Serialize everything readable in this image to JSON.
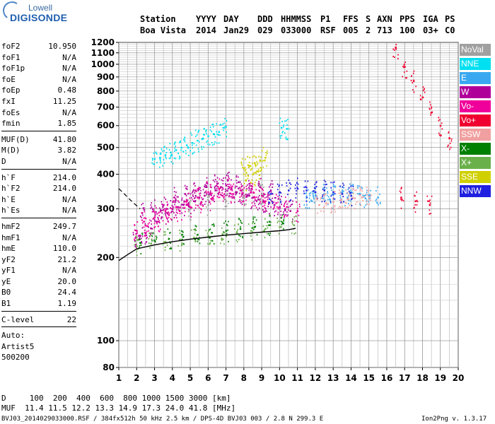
{
  "logo": {
    "top": "Lowell",
    "main": "DIGISONDE"
  },
  "header": {
    "labels": [
      "Station",
      "YYYY",
      "DAY",
      "DDD",
      "HHMMSS",
      "P1",
      "FFS",
      "S",
      "AXN",
      "PPS",
      "IGA",
      "PS"
    ],
    "values": [
      "Boa Vista",
      "2014",
      "Jan29",
      "029",
      "033000",
      "RSF",
      "005",
      "2",
      "713",
      "100",
      "03+",
      "C0"
    ]
  },
  "parameters": {
    "group1": [
      {
        "name": "foF2",
        "value": "10.950"
      },
      {
        "name": "foF1",
        "value": "N/A"
      },
      {
        "name": "foF1p",
        "value": "N/A"
      },
      {
        "name": "foE",
        "value": "N/A"
      },
      {
        "name": "foEp",
        "value": "0.48"
      },
      {
        "name": "fxI",
        "value": "11.25"
      },
      {
        "name": "foEs",
        "value": "N/A"
      },
      {
        "name": "fmin",
        "value": "1.85"
      }
    ],
    "group2": [
      {
        "name": "MUF(D)",
        "value": "41.80"
      },
      {
        "name": "M(D)",
        "value": "3.82"
      },
      {
        "name": "D",
        "value": "N/A"
      }
    ],
    "group3": [
      {
        "name": "h`F",
        "value": "214.0"
      },
      {
        "name": "h`F2",
        "value": "214.0"
      },
      {
        "name": "h`E",
        "value": "N/A"
      },
      {
        "name": "h`Es",
        "value": "N/A"
      }
    ],
    "group4": [
      {
        "name": "hmF2",
        "value": "249.7"
      },
      {
        "name": "hmF1",
        "value": "N/A"
      },
      {
        "name": "hmE",
        "value": "110.0"
      },
      {
        "name": "yF2",
        "value": "21.2"
      },
      {
        "name": "yF1",
        "value": "N/A"
      },
      {
        "name": "yE",
        "value": "20.0"
      },
      {
        "name": "B0",
        "value": "24.4"
      },
      {
        "name": "B1",
        "value": "1.19"
      }
    ],
    "group5": [
      {
        "name": "C-level",
        "value": "22"
      }
    ],
    "autoscale": [
      "Auto:",
      "Artist5",
      "500200"
    ]
  },
  "legend": [
    {
      "label": "NoVal",
      "color": "#a0a0a0"
    },
    {
      "label": "NNE",
      "color": "#00e0f0"
    },
    {
      "label": "E",
      "color": "#3aa8f0"
    },
    {
      "label": "W",
      "color": "#b0009a"
    },
    {
      "label": "Vo-",
      "color": "#f0009a"
    },
    {
      "label": "Vo+",
      "color": "#f00030"
    },
    {
      "label": "SSW",
      "color": "#f0a0a0"
    },
    {
      "label": "X-",
      "color": "#008000"
    },
    {
      "label": "X+",
      "color": "#6ab04a"
    },
    {
      "label": "SSE",
      "color": "#d0d000"
    },
    {
      "label": "NNW",
      "color": "#2020e0"
    }
  ],
  "footer": {
    "d_row": "D     100  200  400  600  800 1000 1500 3000 [km]",
    "muf_row": "MUF  11.4 11.5 12.2 13.3 14.9 17.3 24.0 41.8 [MHz]",
    "file_info": "BVJ03_2014029033000.RSF / 384fx512h 50 kHz 2.5 km / DPS-4D BVJ03 003 / 2.8 N 299.3 E",
    "version": "Ion2Png v. 1.3.17"
  },
  "chart_data": {
    "type": "scatter",
    "title": "",
    "xlabel": "",
    "ylabel": "",
    "xlim": [
      1,
      20
    ],
    "ylim": [
      80,
      1200
    ],
    "x_ticks": [
      1,
      2,
      3,
      4,
      5,
      6,
      7,
      8,
      9,
      10,
      11,
      12,
      13,
      14,
      15,
      16,
      17,
      18,
      19,
      20
    ],
    "y_ticks": [
      80,
      100,
      200,
      300,
      400,
      500,
      600,
      700,
      800,
      900,
      1000,
      1100,
      1200
    ],
    "y_scale": "log",
    "grid": true,
    "legend_position": "right",
    "series": [
      {
        "name": "W",
        "color": "#b0009a",
        "x": [
          1.9,
          2.2,
          2.5,
          2.8,
          3.1,
          3.4,
          3.7,
          4.0,
          4.3,
          4.6,
          4.9,
          5.2,
          5.5,
          5.8,
          6.1,
          6.4,
          6.7,
          7.0,
          7.3,
          7.6,
          7.9,
          8.2,
          8.5,
          8.8,
          9.1,
          9.4,
          9.7,
          10.0,
          10.3,
          10.6,
          2.3,
          2.9,
          3.5,
          4.1,
          4.7,
          5.3,
          5.9,
          6.5,
          7.1,
          7.7,
          8.3,
          8.9,
          9.5
        ],
        "y": [
          230,
          240,
          245,
          255,
          270,
          280,
          290,
          300,
          305,
          310,
          315,
          320,
          330,
          335,
          340,
          350,
          360,
          365,
          355,
          345,
          340,
          335,
          330,
          325,
          320,
          315,
          310,
          305,
          300,
          295,
          290,
          300,
          310,
          330,
          340,
          350,
          360,
          370,
          380,
          375,
          370,
          360,
          350
        ]
      },
      {
        "name": "Vo-",
        "color": "#f0009a",
        "x": [
          2.0,
          2.6,
          3.2,
          3.8,
          4.4,
          5.0,
          5.6,
          6.2,
          6.8,
          7.4,
          8.0,
          8.6,
          9.2,
          9.8,
          10.4,
          11.0,
          2.4,
          3.0,
          3.6,
          4.2,
          4.8,
          5.4,
          6.0,
          6.6,
          7.2,
          7.8,
          8.4,
          9.0
        ],
        "y": [
          250,
          260,
          270,
          285,
          295,
          305,
          315,
          325,
          335,
          340,
          335,
          330,
          320,
          315,
          305,
          295,
          270,
          280,
          295,
          305,
          320,
          330,
          345,
          355,
          360,
          350,
          345,
          335
        ]
      },
      {
        "name": "NNE",
        "color": "#00e0f0",
        "x": [
          3.0,
          3.3,
          3.6,
          3.9,
          4.2,
          4.5,
          4.8,
          5.1,
          5.4,
          5.7,
          6.0,
          6.3,
          6.6,
          6.9,
          10.1,
          10.4
        ],
        "y": [
          455,
          460,
          470,
          480,
          490,
          500,
          510,
          520,
          530,
          540,
          550,
          560,
          570,
          590,
          590,
          585
        ]
      },
      {
        "name": "E",
        "color": "#3aa8f0",
        "x": [
          11.5,
          12.0,
          12.5,
          13.0,
          13.5,
          14.0,
          14.5,
          15.0,
          15.5,
          11.8,
          12.8,
          13.8,
          14.8
        ],
        "y": [
          330,
          335,
          340,
          340,
          345,
          345,
          340,
          335,
          330,
          320,
          325,
          330,
          328
        ]
      },
      {
        "name": "NNW",
        "color": "#2020e0",
        "x": [
          9.5,
          10.0,
          10.5,
          11.0,
          11.5,
          12.0,
          12.5,
          13.0,
          13.5,
          14.0
        ],
        "y": [
          340,
          345,
          350,
          355,
          350,
          345,
          350,
          345,
          340,
          335
        ]
      },
      {
        "name": "SSE",
        "color": "#d0d000",
        "x": [
          8.0,
          8.3,
          8.6,
          8.9,
          9.2,
          8.1,
          8.5,
          8.8
        ],
        "y": [
          420,
          430,
          440,
          450,
          460,
          380,
          400,
          410
        ]
      },
      {
        "name": "X+",
        "color": "#6ab04a",
        "x": [
          2.0,
          2.8,
          3.6,
          4.4,
          5.2,
          6.0,
          6.8,
          7.6,
          8.4,
          9.2,
          10.0,
          10.8
        ],
        "y": [
          220,
          225,
          228,
          232,
          236,
          240,
          243,
          246,
          250,
          254,
          258,
          262
        ]
      },
      {
        "name": "X-",
        "color": "#008000",
        "x": [
          2.2,
          3.0,
          3.8,
          4.6,
          5.4,
          6.2,
          7.0,
          7.8,
          8.6,
          9.4,
          10.2
        ],
        "y": [
          226,
          230,
          234,
          238,
          242,
          246,
          250,
          254,
          258,
          262,
          266
        ]
      },
      {
        "name": "Vo+",
        "color": "#f00030",
        "x": [
          16.5,
          17.0,
          17.5,
          18.0,
          18.5,
          19.0,
          19.5,
          16.8,
          17.6,
          18.4
        ],
        "y": [
          1150,
          980,
          870,
          760,
          670,
          600,
          540,
          330,
          320,
          310
        ]
      },
      {
        "name": "SSW",
        "color": "#f0a0a0",
        "x": [
          12.2,
          12.6,
          13.0,
          13.4,
          13.8,
          14.2,
          14.6,
          15.0
        ],
        "y": [
          310,
          315,
          318,
          322,
          325,
          328,
          330,
          332
        ]
      },
      {
        "name": "NoVal",
        "color": "#a0a0a0",
        "x": [
          5.0,
          6.0,
          7.0,
          8.0,
          9.0
        ],
        "y": [
          300,
          310,
          320,
          330,
          340
        ]
      }
    ],
    "fitted_profile": {
      "x": [
        1.0,
        1.5,
        2.0,
        3.0,
        4.0,
        5.0,
        6.0,
        7.0,
        8.0,
        9.0,
        10.0,
        10.5,
        10.9
      ],
      "y": [
        195,
        205,
        215,
        222,
        228,
        233,
        237,
        241,
        244,
        247,
        250,
        252,
        255
      ]
    },
    "dashed_curve": {
      "x": [
        1.0,
        1.3,
        1.6,
        1.9,
        2.2
      ],
      "y": [
        355,
        340,
        325,
        312,
        300
      ]
    }
  }
}
